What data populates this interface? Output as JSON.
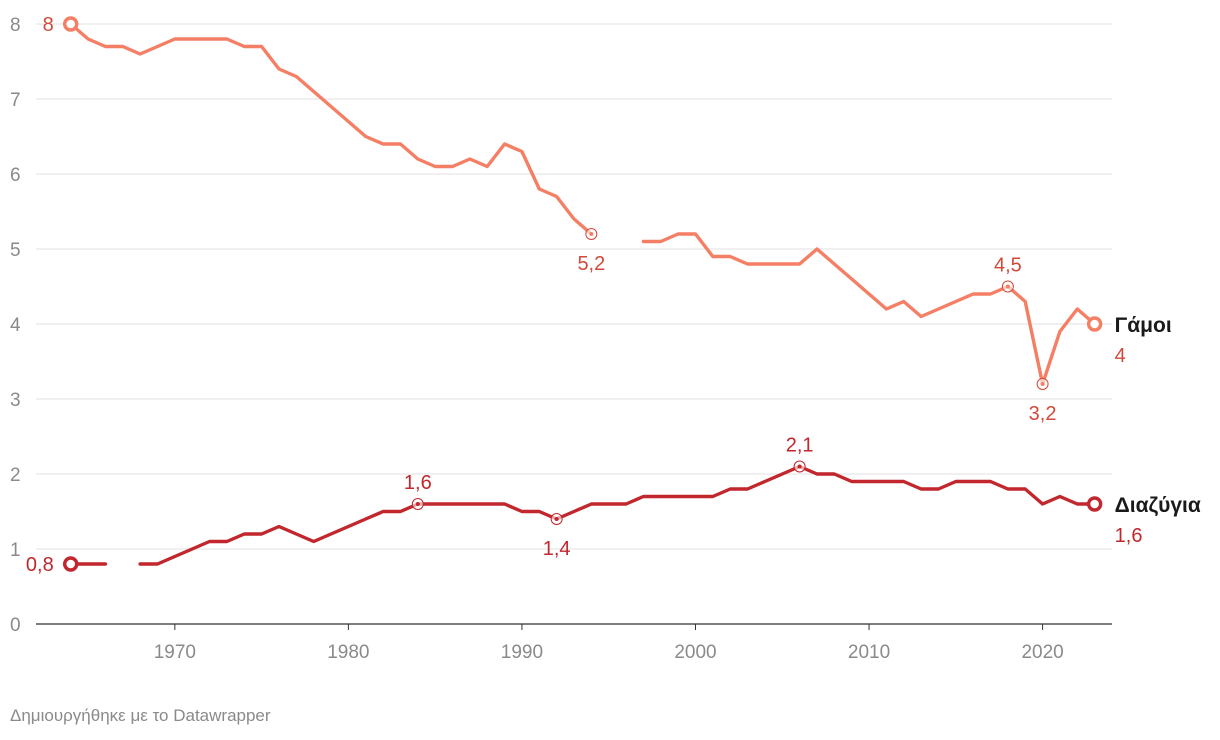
{
  "credit": "Δημιουργήθηκε με το Datawrapper",
  "chart_data": {
    "type": "line",
    "title": "",
    "xlabel": "",
    "ylabel": "",
    "ylim": [
      0,
      8
    ],
    "xlim": [
      1962,
      2024
    ],
    "yticks": [
      0,
      1,
      2,
      3,
      4,
      5,
      6,
      7,
      8
    ],
    "xticks": [
      1970,
      1980,
      1990,
      2000,
      2010,
      2020
    ],
    "grid": true,
    "series": [
      {
        "name": "Γάμοι",
        "color": "#f47f65",
        "label_color": "#d14a3a",
        "end_value_label": "4",
        "points": [
          [
            1964,
            8
          ],
          [
            1965,
            7.8
          ],
          [
            1966,
            7.7
          ],
          [
            1967,
            7.7
          ],
          [
            1968,
            7.6
          ],
          [
            1969,
            7.7
          ],
          [
            1970,
            7.8
          ],
          [
            1971,
            7.8
          ],
          [
            1972,
            7.8
          ],
          [
            1973,
            7.8
          ],
          [
            1974,
            7.7
          ],
          [
            1975,
            7.7
          ],
          [
            1976,
            7.4
          ],
          [
            1977,
            7.3
          ],
          [
            1978,
            7.1
          ],
          [
            1979,
            6.9
          ],
          [
            1980,
            6.7
          ],
          [
            1981,
            6.5
          ],
          [
            1982,
            6.4
          ],
          [
            1983,
            6.4
          ],
          [
            1984,
            6.2
          ],
          [
            1985,
            6.1
          ],
          [
            1986,
            6.1
          ],
          [
            1987,
            6.2
          ],
          [
            1988,
            6.1
          ],
          [
            1989,
            6.4
          ],
          [
            1990,
            6.3
          ],
          [
            1991,
            5.8
          ],
          [
            1992,
            5.7
          ],
          [
            1993,
            5.4
          ],
          [
            1994,
            5.2
          ],
          null,
          [
            1997,
            5.1
          ],
          [
            1998,
            5.1
          ],
          [
            1999,
            5.2
          ],
          [
            2000,
            5.2
          ],
          [
            2001,
            4.9
          ],
          [
            2002,
            4.9
          ],
          [
            2003,
            4.8
          ],
          [
            2004,
            4.8
          ],
          [
            2005,
            4.8
          ],
          [
            2006,
            4.8
          ],
          [
            2007,
            5.0
          ],
          [
            2008,
            4.8
          ],
          [
            2009,
            4.6
          ],
          [
            2010,
            4.4
          ],
          [
            2011,
            4.2
          ],
          [
            2012,
            4.3
          ],
          [
            2013,
            4.1
          ],
          [
            2014,
            4.2
          ],
          [
            2015,
            4.3
          ],
          [
            2016,
            4.4
          ],
          [
            2017,
            4.4
          ],
          [
            2018,
            4.5
          ],
          [
            2019,
            4.3
          ],
          [
            2020,
            3.2
          ],
          [
            2021,
            3.9
          ],
          [
            2022,
            4.2
          ],
          [
            2023,
            4.0
          ]
        ],
        "annotations": [
          {
            "x": 1964,
            "y": 8,
            "label": "8",
            "pos": "left"
          },
          {
            "x": 1994,
            "y": 5.2,
            "label": "5,2",
            "pos": "below"
          },
          {
            "x": 2018,
            "y": 4.5,
            "label": "4,5",
            "pos": "above"
          },
          {
            "x": 2020,
            "y": 3.2,
            "label": "3,2",
            "pos": "below"
          }
        ]
      },
      {
        "name": "Διαζύγια",
        "color": "#c1272d",
        "label_color": "#c1272d",
        "end_value_label": "1,6",
        "points": [
          [
            1964,
            0.8
          ],
          [
            1965,
            0.8
          ],
          [
            1966,
            0.8
          ],
          null,
          [
            1968,
            0.8
          ],
          [
            1969,
            0.8
          ],
          [
            1970,
            0.9
          ],
          [
            1971,
            1.0
          ],
          [
            1972,
            1.1
          ],
          [
            1973,
            1.1
          ],
          [
            1974,
            1.2
          ],
          [
            1975,
            1.2
          ],
          [
            1976,
            1.3
          ],
          [
            1977,
            1.2
          ],
          [
            1978,
            1.1
          ],
          [
            1979,
            1.2
          ],
          [
            1980,
            1.3
          ],
          [
            1981,
            1.4
          ],
          [
            1982,
            1.5
          ],
          [
            1983,
            1.5
          ],
          [
            1984,
            1.6
          ],
          [
            1985,
            1.6
          ],
          [
            1986,
            1.6
          ],
          [
            1987,
            1.6
          ],
          [
            1988,
            1.6
          ],
          [
            1989,
            1.6
          ],
          [
            1990,
            1.5
          ],
          [
            1991,
            1.5
          ],
          [
            1992,
            1.4
          ],
          [
            1993,
            1.5
          ],
          [
            1994,
            1.6
          ],
          [
            1995,
            1.6
          ],
          [
            1996,
            1.6
          ],
          [
            1997,
            1.7
          ],
          [
            1998,
            1.7
          ],
          [
            1999,
            1.7
          ],
          [
            2000,
            1.7
          ],
          [
            2001,
            1.7
          ],
          [
            2002,
            1.8
          ],
          [
            2003,
            1.8
          ],
          [
            2004,
            1.9
          ],
          [
            2005,
            2.0
          ],
          [
            2006,
            2.1
          ],
          [
            2007,
            2.0
          ],
          [
            2008,
            2.0
          ],
          [
            2009,
            1.9
          ],
          [
            2010,
            1.9
          ],
          [
            2011,
            1.9
          ],
          [
            2012,
            1.9
          ],
          [
            2013,
            1.8
          ],
          [
            2014,
            1.8
          ],
          [
            2015,
            1.9
          ],
          [
            2016,
            1.9
          ],
          [
            2017,
            1.9
          ],
          [
            2018,
            1.8
          ],
          [
            2019,
            1.8
          ],
          [
            2020,
            1.6
          ],
          [
            2021,
            1.7
          ],
          [
            2022,
            1.6
          ],
          [
            2023,
            1.6
          ]
        ],
        "annotations": [
          {
            "x": 1964,
            "y": 0.8,
            "label": "0,8",
            "pos": "left"
          },
          {
            "x": 1984,
            "y": 1.6,
            "label": "1,6",
            "pos": "above"
          },
          {
            "x": 1992,
            "y": 1.4,
            "label": "1,4",
            "pos": "below"
          },
          {
            "x": 2006,
            "y": 2.1,
            "label": "2,1",
            "pos": "above"
          }
        ]
      }
    ]
  }
}
